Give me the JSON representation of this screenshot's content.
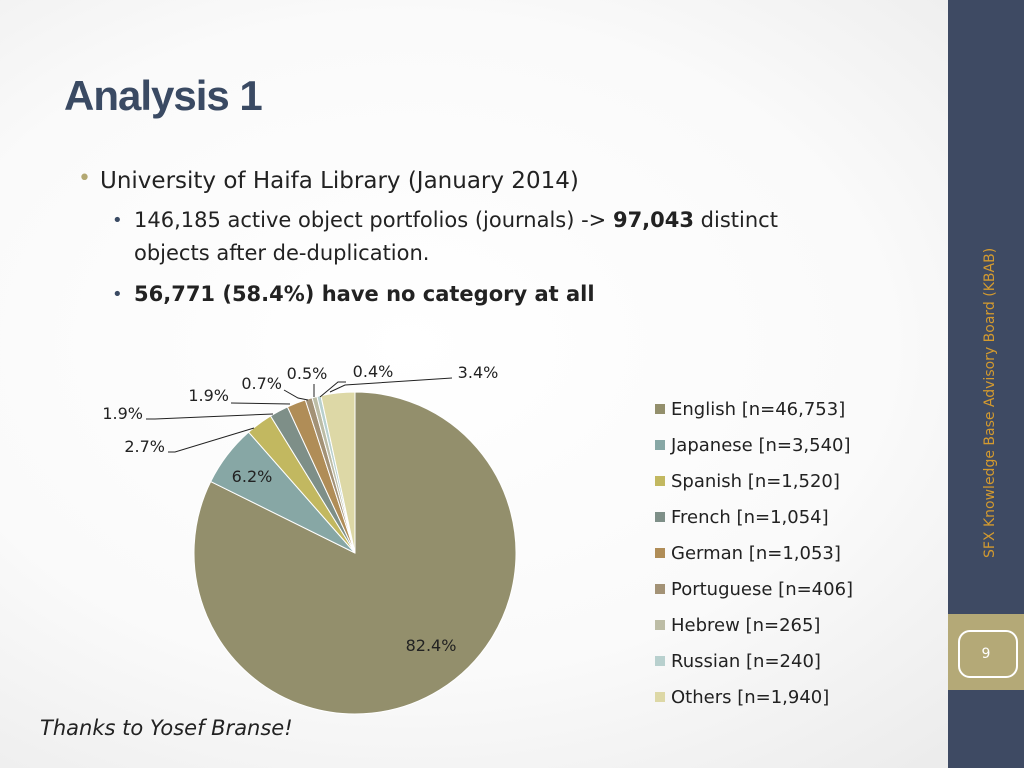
{
  "slide": {
    "title": "Analysis 1",
    "bullet1": "University of Haifa Library (January 2014)",
    "bullet2_pre": "146,185 active object portfolios (journals) -> ",
    "bullet2_bold": "97,043",
    "bullet2_post": " distinct",
    "bullet2_line2": "objects after de-duplication.",
    "bullet3": "56,771 (58.4%) have no category at all",
    "thanks": "Thanks to Yosef Branse!",
    "sidebar_text": "SFX Knowledge Base Advisory Board (KBAB)",
    "page_number": "9"
  },
  "colors": {
    "sidebar": "#3e4a63",
    "title": "#3a4a63",
    "accent_gold": "#d39a2f",
    "page_box": "#b4a977"
  },
  "chart_data": {
    "type": "pie",
    "title": "",
    "slices": [
      {
        "label": "English [n=46,753]",
        "value": 82.4,
        "data_label": "82.4%",
        "color": "#938f6c"
      },
      {
        "label": "Japanese [n=3,540]",
        "value": 6.2,
        "data_label": "6.2%",
        "color": "#87a7a5"
      },
      {
        "label": "Spanish [n=1,520]",
        "value": 2.7,
        "data_label": "2.7%",
        "color": "#c2b860"
      },
      {
        "label": "French [n=1,054]",
        "value": 1.9,
        "data_label": "1.9%",
        "color": "#7e8f88"
      },
      {
        "label": "German [n=1,053]",
        "value": 1.9,
        "data_label": "1.9%",
        "color": "#b08d57"
      },
      {
        "label": "Portuguese [n=406]",
        "value": 0.7,
        "data_label": "0.7%",
        "color": "#a39276"
      },
      {
        "label": "Hebrew [n=265]",
        "value": 0.5,
        "data_label": "0.5%",
        "color": "#bcbca5"
      },
      {
        "label": "Russian [n=240]",
        "value": 0.4,
        "data_label": "0.4%",
        "color": "#b8d0ce"
      },
      {
        "label": "Others [n=1,940]",
        "value": 3.4,
        "data_label": "3.4%",
        "color": "#ddd8a6"
      }
    ],
    "legend_position": "right"
  }
}
